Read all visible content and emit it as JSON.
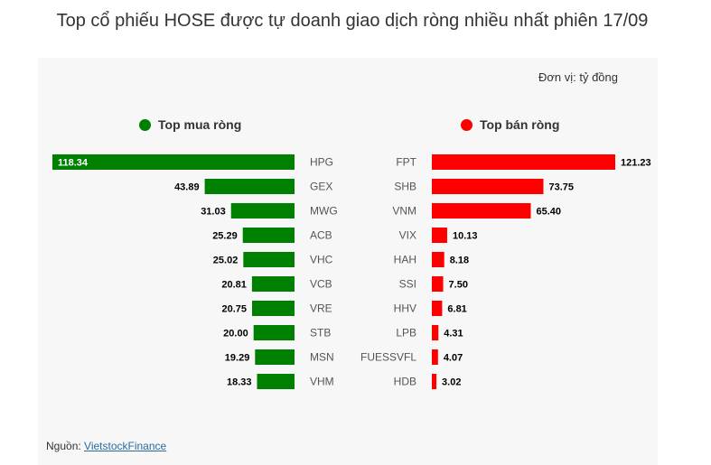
{
  "title": "Top cổ phiếu HOSE được tự doanh giao dịch ròng nhiều nhất phiên 17/09",
  "unit": "Đơn vị: tỷ đồng",
  "source_prefix": "Nguồn: ",
  "source_link": "VietstockFinance",
  "colors": {
    "buy": "#008000",
    "sell": "#ff0000"
  },
  "chart_data": [
    {
      "type": "bar",
      "title": "Top mua ròng",
      "categories": [
        "HPG",
        "GEX",
        "MWG",
        "ACB",
        "VHC",
        "VCB",
        "VRE",
        "STB",
        "MSN",
        "VHM"
      ],
      "values": [
        118.34,
        43.89,
        31.03,
        25.29,
        25.02,
        20.81,
        20.75,
        20.0,
        19.29,
        18.33
      ],
      "labels": [
        "118.34",
        "43.89",
        "31.03",
        "25.29",
        "25.02",
        "20.81",
        "20.75",
        "20.00",
        "19.29",
        "18.33"
      ],
      "color": "#008000"
    },
    {
      "type": "bar",
      "title": "Top bán ròng",
      "categories": [
        "FPT",
        "SHB",
        "VNM",
        "VIX",
        "HAH",
        "SSI",
        "HHV",
        "LPB",
        "FUESSVFL",
        "HDB"
      ],
      "values": [
        121.23,
        73.75,
        65.4,
        10.13,
        8.18,
        7.5,
        6.81,
        4.31,
        4.07,
        3.02
      ],
      "labels": [
        "121.23",
        "73.75",
        "65.40",
        "10.13",
        "8.18",
        "7.50",
        "6.81",
        "4.31",
        "4.07",
        "3.02"
      ],
      "color": "#ff0000"
    }
  ]
}
